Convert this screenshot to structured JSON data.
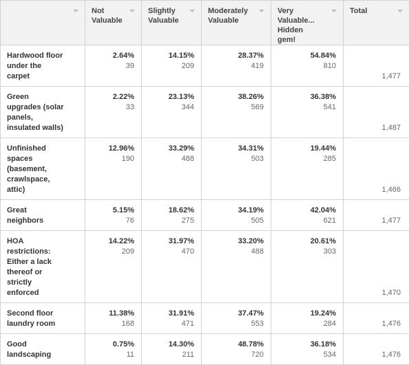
{
  "table": {
    "headers": [
      "Not Valuable",
      "Slightly Valuable",
      "Moderately Valuable",
      "Very Valuable... Hidden gem!",
      "Total"
    ],
    "rows": [
      {
        "label": "Hardwood floor under the carpet",
        "cells": [
          [
            "2.64%",
            "39"
          ],
          [
            "14.15%",
            "209"
          ],
          [
            "28.37%",
            "419"
          ],
          [
            "54.84%",
            "810"
          ]
        ],
        "total": "1,477"
      },
      {
        "label": "Green upgrades (solar panels, insulated walls)",
        "cells": [
          [
            "2.22%",
            "33"
          ],
          [
            "23.13%",
            "344"
          ],
          [
            "38.26%",
            "569"
          ],
          [
            "36.38%",
            "541"
          ]
        ],
        "total": "1,487"
      },
      {
        "label": "Unfinished spaces (basement, crawlspace, attic)",
        "cells": [
          [
            "12.96%",
            "190"
          ],
          [
            "33.29%",
            "488"
          ],
          [
            "34.31%",
            "503"
          ],
          [
            "19.44%",
            "285"
          ]
        ],
        "total": "1,466"
      },
      {
        "label": "Great neighbors",
        "cells": [
          [
            "5.15%",
            "76"
          ],
          [
            "18.62%",
            "275"
          ],
          [
            "34.19%",
            "505"
          ],
          [
            "42.04%",
            "621"
          ]
        ],
        "total": "1,477"
      },
      {
        "label": "HOA restrictions: Either a lack thereof or strictly enforced",
        "cells": [
          [
            "14.22%",
            "209"
          ],
          [
            "31.97%",
            "470"
          ],
          [
            "33.20%",
            "488"
          ],
          [
            "20.61%",
            "303"
          ]
        ],
        "total": "1,470"
      },
      {
        "label": "Second floor laundry room",
        "cells": [
          [
            "11.38%",
            "168"
          ],
          [
            "31.91%",
            "471"
          ],
          [
            "37.47%",
            "553"
          ],
          [
            "19.24%",
            "284"
          ]
        ],
        "total": "1,476"
      },
      {
        "label": "Good landscaping",
        "cells": [
          [
            "0.75%",
            "11"
          ],
          [
            "14.30%",
            "211"
          ],
          [
            "48.78%",
            "720"
          ],
          [
            "36.18%",
            "534"
          ]
        ],
        "total": "1,476"
      }
    ]
  }
}
